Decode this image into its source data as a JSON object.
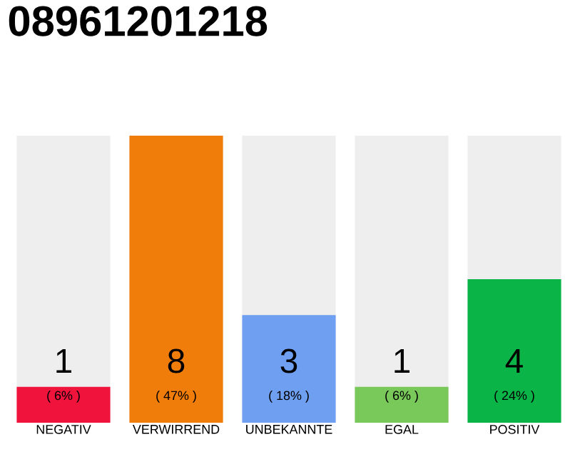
{
  "chart_data": {
    "type": "bar",
    "title": "08961201218",
    "categories": [
      "NEGATIV",
      "VERWIRREND",
      "UNBEKANNTE",
      "EGAL",
      "POSITIV"
    ],
    "values": [
      1,
      8,
      3,
      1,
      4
    ],
    "colors": [
      "#f0143c",
      "#f07d0a",
      "#6e9ff0",
      "#78c85a",
      "#0ab446"
    ],
    "data_labels": true,
    "annotations": [
      "( 6% )",
      "( 47% )",
      "( 18% )",
      "( 6% )",
      "( 24% )"
    ]
  }
}
